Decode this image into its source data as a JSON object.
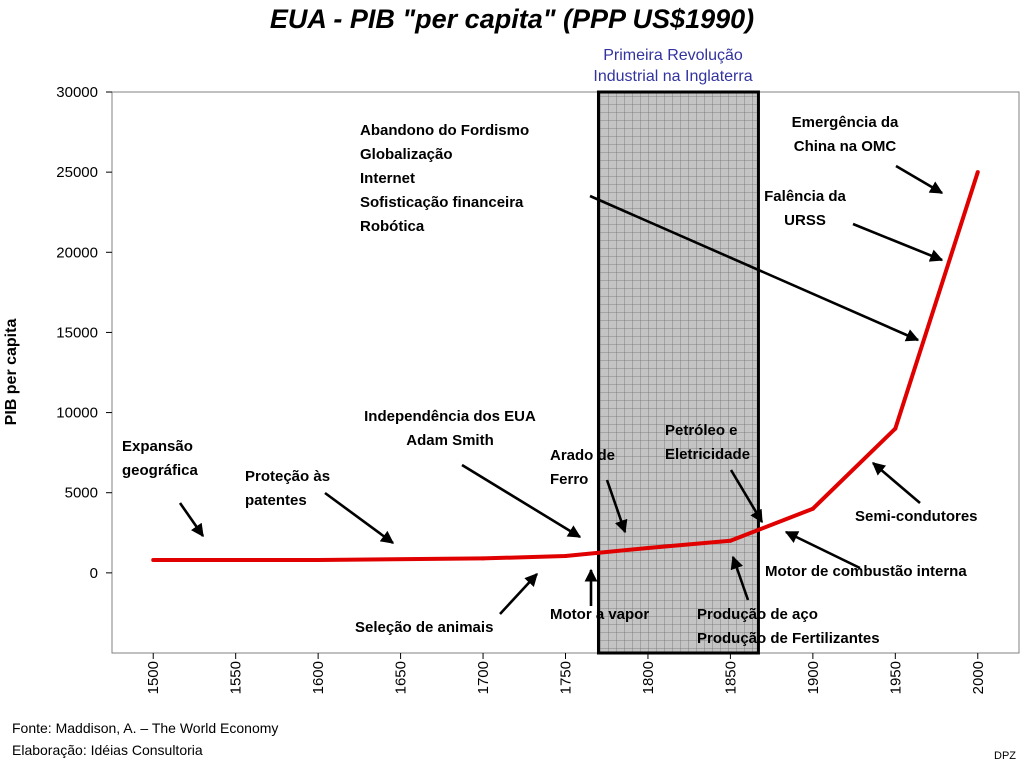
{
  "chart_data": {
    "type": "line",
    "title": "EUA - PIB \"per capita\" (PPP US$1990)",
    "xlabel": "",
    "ylabel": "PIB per capita",
    "x": [
      1500,
      1600,
      1700,
      1750,
      1800,
      1850,
      1900,
      1950,
      2000
    ],
    "series": [
      {
        "values": [
          800,
          800,
          900,
          1050,
          1550,
          2000,
          4000,
          9000,
          25000
        ]
      }
    ],
    "xticks": [
      1500,
      1550,
      1600,
      1650,
      1700,
      1750,
      1800,
      1850,
      1900,
      1950,
      2000
    ],
    "yticks": [
      0,
      5000,
      10000,
      15000,
      20000,
      25000,
      30000
    ],
    "xlim": [
      1475,
      2025
    ],
    "ylim": [
      -5000,
      30000
    ],
    "grid": false,
    "line_color": "#e00000",
    "highlight_period": {
      "x_range": [
        1770,
        1867
      ],
      "label": "Primeira Revolução\nIndustrial na Inglaterra",
      "fill": "#c0c0c0",
      "border": "#000000"
    },
    "annotations": [
      {
        "text": "Abandono do Fordismo\nGlobalização\nInternet\nSofisticação financeira\nRobótica"
      },
      {
        "text": "Emergência da\nChina na OMC"
      },
      {
        "text": "Falência da\nURSS"
      },
      {
        "text": "Independência dos EUA\nAdam Smith"
      },
      {
        "text": "Petróleo e\nEletricidade"
      },
      {
        "text": "Arado de\nFerro"
      },
      {
        "text": "Expansão\ngeográfica"
      },
      {
        "text": "Proteção às\npatentes"
      },
      {
        "text": "Semi-condutores"
      },
      {
        "text": "Motor de combustão interna"
      },
      {
        "text": "Seleção de animais"
      },
      {
        "text": "Motor a vapor"
      },
      {
        "text": "Produção de aço\nProdução de Fertilizantes"
      }
    ]
  },
  "footer": {
    "source": "Fonte: Maddison, A. – The World Economy",
    "elaboration": "Elaboração: Idéias Consultoria"
  },
  "credit": "DPZ"
}
